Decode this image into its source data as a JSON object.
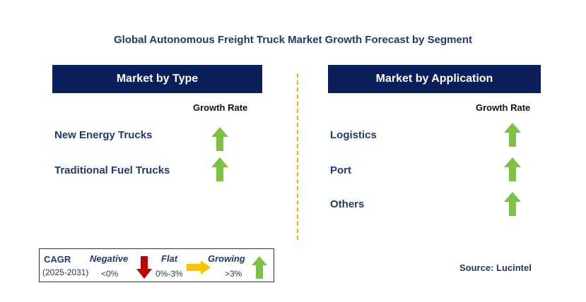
{
  "title": "Global Autonomous Freight Truck Market Growth Forecast by Segment",
  "left_panel": {
    "header": "Market by Type",
    "growth_rate_label": "Growth Rate",
    "items": [
      {
        "label": "New Energy Trucks",
        "trend": "growing"
      },
      {
        "label": "Traditional Fuel Trucks",
        "trend": "growing"
      }
    ]
  },
  "right_panel": {
    "header": "Market by Application",
    "growth_rate_label": "Growth Rate",
    "items": [
      {
        "label": "Logistics",
        "trend": "growing"
      },
      {
        "label": "Port",
        "trend": "growing"
      },
      {
        "label": "Others",
        "trend": "growing"
      }
    ]
  },
  "legend": {
    "cagr_label": "CAGR",
    "period": "(2025-2031)",
    "negative_label": "Negative",
    "negative_range": "<0%",
    "flat_label": "Flat",
    "flat_range": "0%-3%",
    "growing_label": "Growing",
    "growing_range": ">3%"
  },
  "source": "Source: Lucintel",
  "colors": {
    "header_bg": "#0b1f5c",
    "growing_arrow": "#7dc242",
    "negative_arrow": "#c00000",
    "flat_arrow": "#ffc000",
    "divider": "#f0b400"
  }
}
